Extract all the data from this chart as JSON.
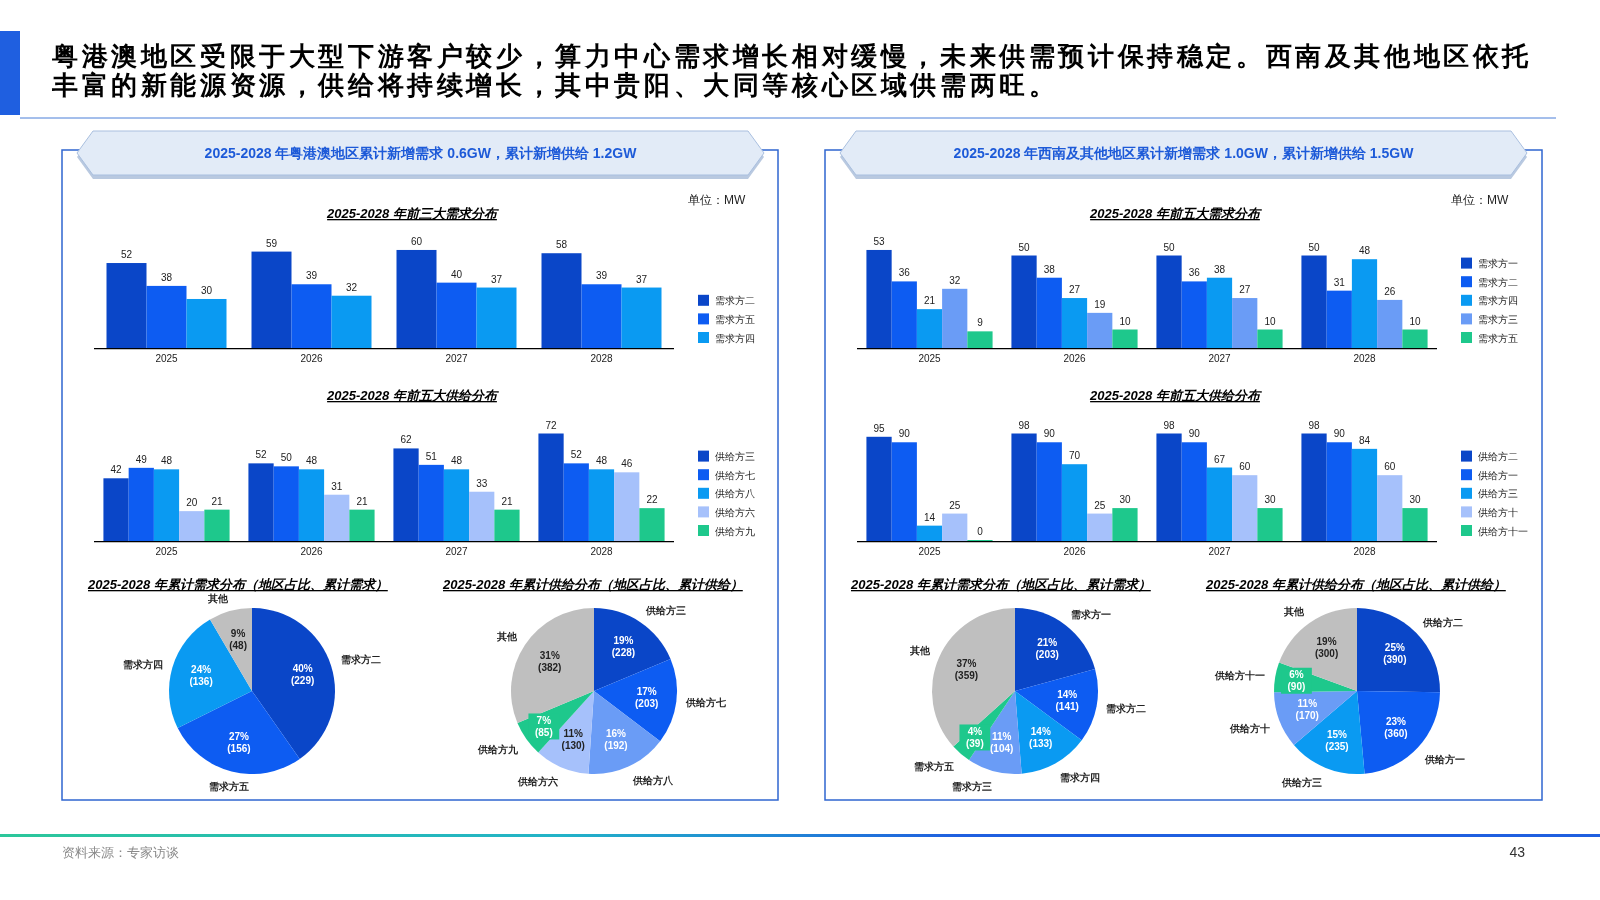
{
  "chart_data": [
    {
      "type": "other",
      "title": "粤港澳地区受限于大型下游客户较少，算力中心需求增长相对缓慢，未来供需预计保持稳定。西南及其他地区依托丰富的新能源资源，供给将持续增长，其中贵阳、大同等核心区域供需两旺。",
      "annotations": [
        "资料来源：专家访谈",
        "43"
      ]
    },
    {
      "type": "bar",
      "subtitle": "2025-2028 年粤港澳地区累计新增需求 0.6GW，累计新增供给 1.2GW",
      "title": "2025-2028 年前三大需求分布",
      "annotations": [
        "单位：MW"
      ],
      "categories": [
        "2025",
        "2026",
        "2027",
        "2028"
      ],
      "series": [
        {
          "name": "需求方二",
          "color": "#0a46c8",
          "values": [
            52,
            59,
            60,
            58
          ]
        },
        {
          "name": "需求方五",
          "color": "#0d5cf2",
          "values": [
            38,
            39,
            40,
            39
          ]
        },
        {
          "name": "需求方四",
          "color": "#0a9af2",
          "values": [
            30,
            32,
            37,
            37
          ]
        }
      ],
      "data_labels": true,
      "legend": "right"
    },
    {
      "type": "bar",
      "title": "2025-2028 年前五大供给分布",
      "categories": [
        "2025",
        "2026",
        "2027",
        "2028"
      ],
      "series": [
        {
          "name": "供给方三",
          "color": "#0a46c8",
          "values": [
            42,
            52,
            62,
            72
          ]
        },
        {
          "name": "供给方七",
          "color": "#0d5cf2",
          "values": [
            49,
            50,
            51,
            52
          ]
        },
        {
          "name": "供给方八",
          "color": "#0a9af2",
          "values": [
            48,
            48,
            48,
            48
          ]
        },
        {
          "name": "供给方六",
          "color": "#a6c1fb",
          "values": [
            20,
            31,
            33,
            46
          ]
        },
        {
          "name": "供给方九",
          "color": "#1ec88c",
          "values": [
            21,
            21,
            21,
            22
          ]
        }
      ],
      "data_labels": true,
      "legend": "right"
    },
    {
      "type": "pie",
      "title": "2025-2028 年累计需求分布（地区占比、累计需求）",
      "categories": [
        "需求方二",
        "需求方五",
        "需求方四",
        "其他"
      ],
      "values": [
        229,
        156,
        136,
        48
      ],
      "colors": [
        "#0a46c8",
        "#0d5cf2",
        "#0a9af2",
        "#bfbfbf"
      ],
      "value_labels": [
        "40%\n(229)",
        "27%\n(156)",
        "24%\n(136)",
        "9%\n(48)"
      ]
    },
    {
      "type": "pie",
      "title": "2025-2028 年累计供给分布（地区占比、累计供给）",
      "categories": [
        "供给方三",
        "供给方七",
        "供给方八",
        "供给方六",
        "供给方九",
        "其他"
      ],
      "values": [
        228,
        203,
        192,
        130,
        85,
        382
      ],
      "colors": [
        "#0a46c8",
        "#0d5cf2",
        "#6a9cf6",
        "#a6c1fb",
        "#1ec88c",
        "#bfbfbf"
      ],
      "value_labels": [
        "19%\n(228)",
        "17%\n(203)",
        "16%\n(192)",
        "11%\n(130)",
        "7%\n(85)",
        "31%\n(382)"
      ]
    },
    {
      "type": "bar",
      "subtitle": "2025-2028 年西南及其他地区累计新增需求 1.0GW，累计新增供给 1.5GW",
      "title": "2025-2028 年前五大需求分布",
      "annotations": [
        "单位：MW"
      ],
      "categories": [
        "2025",
        "2026",
        "2027",
        "2028"
      ],
      "series": [
        {
          "name": "需求方一",
          "color": "#0a46c8",
          "values": [
            53,
            50,
            50,
            50
          ]
        },
        {
          "name": "需求方二",
          "color": "#0d5cf2",
          "values": [
            36,
            38,
            36,
            31
          ]
        },
        {
          "name": "需求方四",
          "color": "#0a9af2",
          "values": [
            21,
            27,
            38,
            48
          ]
        },
        {
          "name": "需求方三",
          "color": "#6a9cf6",
          "values": [
            32,
            19,
            27,
            26
          ]
        },
        {
          "name": "需求方五",
          "color": "#1ec88c",
          "values": [
            9,
            10,
            10,
            10
          ]
        }
      ],
      "data_labels": true,
      "legend": "right"
    },
    {
      "type": "bar",
      "title": "2025-2028 年前五大供给分布",
      "categories": [
        "2025",
        "2026",
        "2027",
        "2028"
      ],
      "series": [
        {
          "name": "供给方二",
          "color": "#0a46c8",
          "values": [
            95,
            98,
            98,
            98
          ]
        },
        {
          "name": "供给方一",
          "color": "#0d5cf2",
          "values": [
            90,
            90,
            90,
            90
          ]
        },
        {
          "name": "供给方三",
          "color": "#0a9af2",
          "values": [
            14,
            70,
            67,
            84
          ]
        },
        {
          "name": "供给方十",
          "color": "#a6c1fb",
          "values": [
            25,
            25,
            60,
            60
          ]
        },
        {
          "name": "供给方十一",
          "color": "#1ec88c",
          "values": [
            0,
            30,
            30,
            30
          ]
        }
      ],
      "data_labels": true,
      "legend": "right"
    },
    {
      "type": "pie",
      "title": "2025-2028 年累计需求分布（地区占比、累计需求）",
      "categories": [
        "需求方一",
        "需求方二",
        "需求方四",
        "需求方三",
        "需求方五",
        "其他"
      ],
      "values": [
        203,
        141,
        133,
        104,
        39,
        359
      ],
      "colors": [
        "#0a46c8",
        "#0d5cf2",
        "#0a9af2",
        "#6a9cf6",
        "#1ec88c",
        "#bfbfbf"
      ],
      "value_labels": [
        "21%\n(203)",
        "14%\n(141)",
        "14%\n(133)",
        "11%\n(104)",
        "4%\n(39)",
        "37%\n(359)"
      ]
    },
    {
      "type": "pie",
      "title": "2025-2028 年累计供给分布（地区占比、累计供给）",
      "categories": [
        "供给方二",
        "供给方一",
        "供给方三",
        "供给方十",
        "供给方十一",
        "其他"
      ],
      "values": [
        390,
        360,
        235,
        170,
        90,
        300
      ],
      "colors": [
        "#0a46c8",
        "#0d5cf2",
        "#0a9af2",
        "#6a9cf6",
        "#1ec88c",
        "#bfbfbf"
      ],
      "value_labels": [
        "25%\n(390)",
        "23%\n(360)",
        "15%\n(235)",
        "11%\n(170)",
        "6%\n(90)",
        "19%\n(300)"
      ]
    }
  ]
}
